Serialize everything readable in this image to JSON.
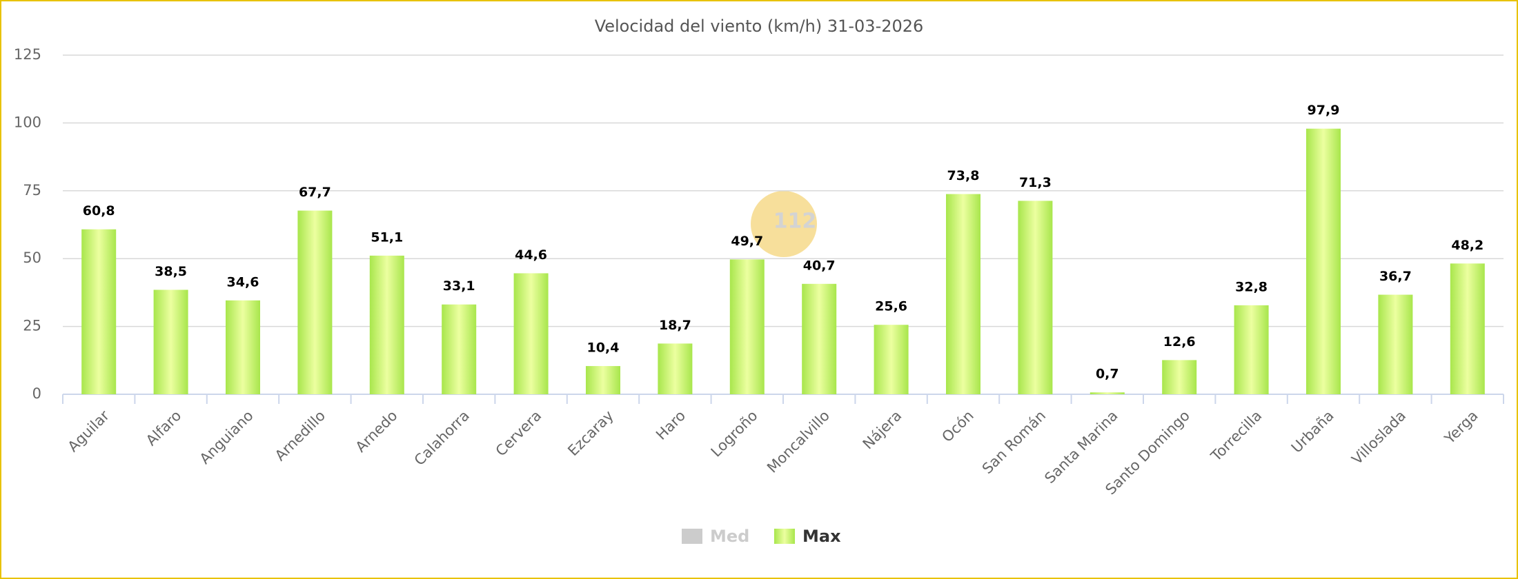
{
  "chart_data": {
    "type": "bar",
    "title": "Velocidad del viento (km/h) 31-03-2026",
    "categories": [
      "Aguilar",
      "Alfaro",
      "Anguiano",
      "Arnedillo",
      "Arnedo",
      "Calahorra",
      "Cervera",
      "Ezcaray",
      "Haro",
      "Logroño",
      "Moncalvillo",
      "Nájera",
      "Ocón",
      "San Román",
      "Santa Marina",
      "Santo Domingo",
      "Torrecilla",
      "Urbaña",
      "Villoslada",
      "Yerga"
    ],
    "series": [
      {
        "name": "Med",
        "color": "#cccccc",
        "hidden": true,
        "values": [
          null,
          null,
          null,
          null,
          null,
          null,
          null,
          null,
          null,
          null,
          null,
          null,
          null,
          null,
          null,
          null,
          null,
          null,
          null,
          null
        ]
      },
      {
        "name": "Max",
        "color": "#a8e64c",
        "hidden": false,
        "values": [
          60.8,
          38.5,
          34.6,
          67.7,
          51.1,
          33.1,
          44.6,
          10.4,
          18.7,
          49.7,
          40.7,
          25.6,
          73.8,
          71.3,
          0.7,
          12.6,
          32.8,
          97.9,
          36.7,
          48.2
        ],
        "value_labels": [
          "60,8",
          "38,5",
          "34,6",
          "67,7",
          "51,1",
          "33,1",
          "44,6",
          "10,4",
          "18,7",
          "49,7",
          "40,7",
          "25,6",
          "73,8",
          "71,3",
          "0,7",
          "12,6",
          "32,8",
          "97,9",
          "36,7",
          "48,2"
        ]
      }
    ],
    "ylim": [
      0,
      125
    ],
    "yticks": [
      0,
      25,
      50,
      75,
      100,
      125
    ],
    "grid": true,
    "legend": "bottom",
    "watermark": "112"
  }
}
